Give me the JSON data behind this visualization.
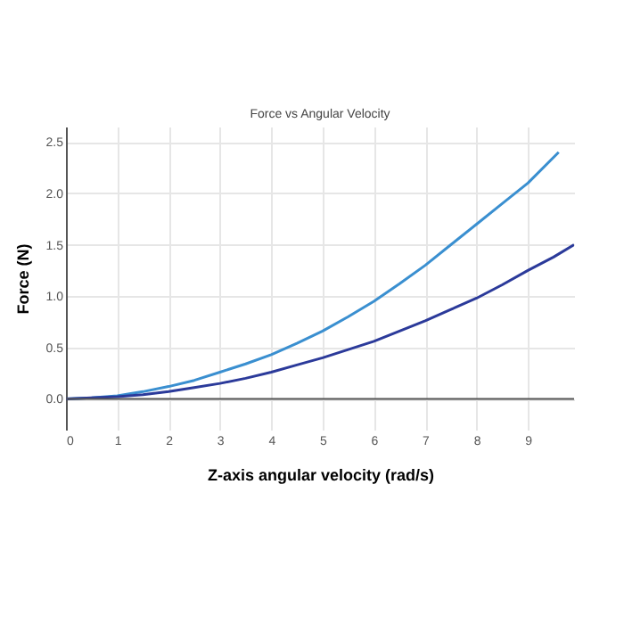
{
  "chart_data": {
    "type": "line",
    "title": "Force vs Angular Velocity",
    "xlabel": "Z-axis angular velocity (rad/s)",
    "ylabel": "Force (N)",
    "series": [
      {
        "color": "#3a8fd0",
        "x": [
          0,
          0.5,
          1,
          1.5,
          2,
          2.5,
          3,
          3.5,
          4,
          4.5,
          5,
          5.5,
          6,
          6.5,
          7,
          7.5,
          8,
          8.5,
          9,
          9.6
        ],
        "values": [
          0,
          0.01,
          0.03,
          0.07,
          0.12,
          0.18,
          0.26,
          0.34,
          0.43,
          0.54,
          0.66,
          0.8,
          0.95,
          1.12,
          1.3,
          1.5,
          1.7,
          1.9,
          2.1,
          2.4
        ]
      },
      {
        "color": "#2b3a9a",
        "x": [
          0,
          0.5,
          1,
          1.5,
          2,
          2.5,
          3,
          3.5,
          4,
          4.5,
          5,
          5.5,
          6,
          6.5,
          7,
          7.5,
          8,
          8.5,
          9,
          9.5,
          9.9
        ],
        "values": [
          0,
          0.01,
          0.02,
          0.04,
          0.07,
          0.11,
          0.15,
          0.2,
          0.26,
          0.33,
          0.4,
          0.48,
          0.56,
          0.66,
          0.76,
          0.87,
          0.98,
          1.11,
          1.25,
          1.38,
          1.5
        ]
      }
    ],
    "xlim": [
      0,
      9.9
    ],
    "xticks": [
      0,
      1,
      2,
      3,
      4,
      5,
      6,
      7,
      8,
      9
    ],
    "ylim": [
      -0.3,
      2.65
    ],
    "yticks": [
      {
        "value": 0,
        "label": "0.0"
      },
      {
        "value": 0.5,
        "label": "0.5"
      },
      {
        "value": 1,
        "label": "1.0"
      },
      {
        "value": 1.5,
        "label": "1.5"
      },
      {
        "value": 2,
        "label": "2.0"
      },
      {
        "value": 2.5,
        "label": "2.5"
      }
    ],
    "ref_lines": [
      {
        "axis": "y",
        "value": 0,
        "color": "#555555"
      }
    ],
    "grid": true,
    "legend": false
  }
}
